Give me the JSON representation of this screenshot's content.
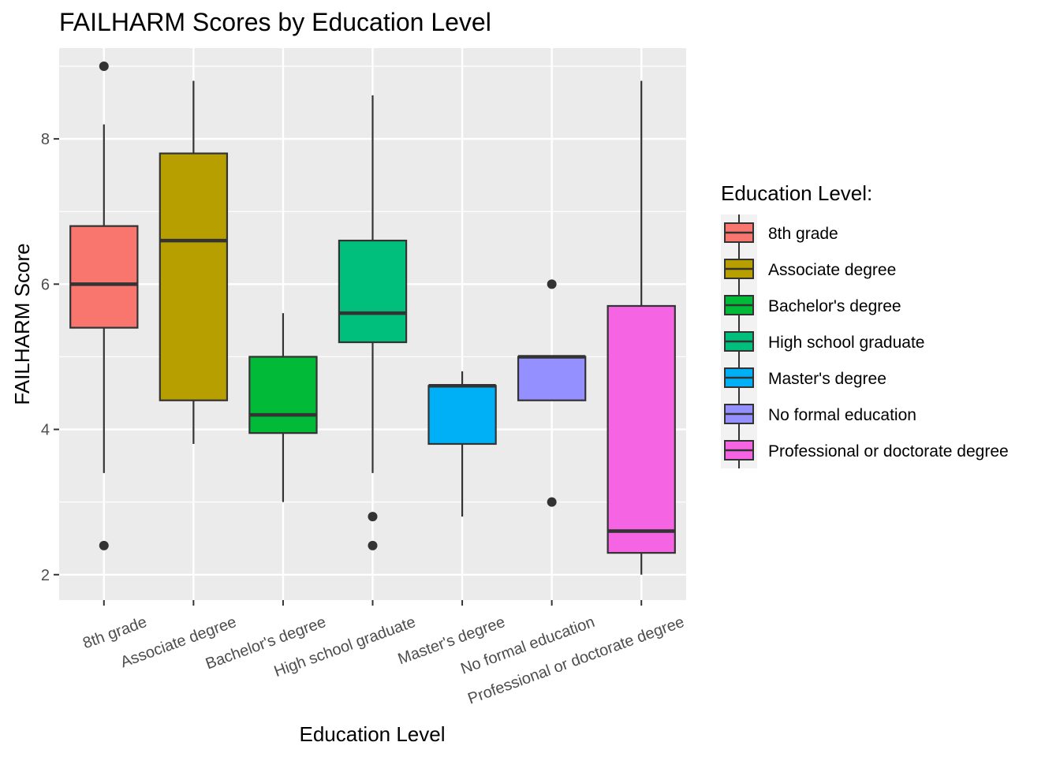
{
  "chart_data": {
    "type": "boxplot",
    "title": "FAILHARM Scores by Education Level",
    "xlabel": "Education Level",
    "ylabel": "FAILHARM Score",
    "ylim": [
      1.65,
      9.25
    ],
    "yticks": [
      2,
      4,
      6,
      8
    ],
    "grid": true,
    "legend": {
      "title": "Education Level:",
      "position": "right"
    },
    "categories": [
      "8th grade",
      "Associate degree",
      "Bachelor's degree",
      "High school graduate",
      "Master's degree",
      "No formal education",
      "Professional or doctorate degree"
    ],
    "colors": [
      "#F8766D",
      "#B79F00",
      "#00BA38",
      "#00BF7D",
      "#00B0F6",
      "#9590FF",
      "#F564E3"
    ],
    "boxes": [
      {
        "category": "8th grade",
        "whisker_low": 3.4,
        "q1": 5.4,
        "median": 6.0,
        "q3": 6.8,
        "whisker_high": 8.2,
        "outliers": [
          9.0,
          2.4
        ]
      },
      {
        "category": "Associate degree",
        "whisker_low": 3.8,
        "q1": 4.4,
        "median": 6.6,
        "q3": 7.8,
        "whisker_high": 8.8,
        "outliers": []
      },
      {
        "category": "Bachelor's degree",
        "whisker_low": 3.0,
        "q1": 3.95,
        "median": 4.2,
        "q3": 5.0,
        "whisker_high": 5.6,
        "outliers": []
      },
      {
        "category": "High school graduate",
        "whisker_low": 3.4,
        "q1": 5.2,
        "median": 5.6,
        "q3": 6.6,
        "whisker_high": 8.6,
        "outliers": [
          2.8,
          2.4
        ]
      },
      {
        "category": "Master's degree",
        "whisker_low": 2.8,
        "q1": 3.8,
        "median": 4.6,
        "q3": 4.6,
        "whisker_high": 4.8,
        "outliers": []
      },
      {
        "category": "No formal education",
        "whisker_low": 4.4,
        "q1": 4.4,
        "median": 5.0,
        "q3": 5.0,
        "whisker_high": 5.0,
        "outliers": [
          6.0,
          3.0
        ]
      },
      {
        "category": "Professional or doctorate degree",
        "whisker_low": 2.0,
        "q1": 2.3,
        "median": 2.6,
        "q3": 5.7,
        "whisker_high": 8.8,
        "outliers": []
      }
    ]
  }
}
